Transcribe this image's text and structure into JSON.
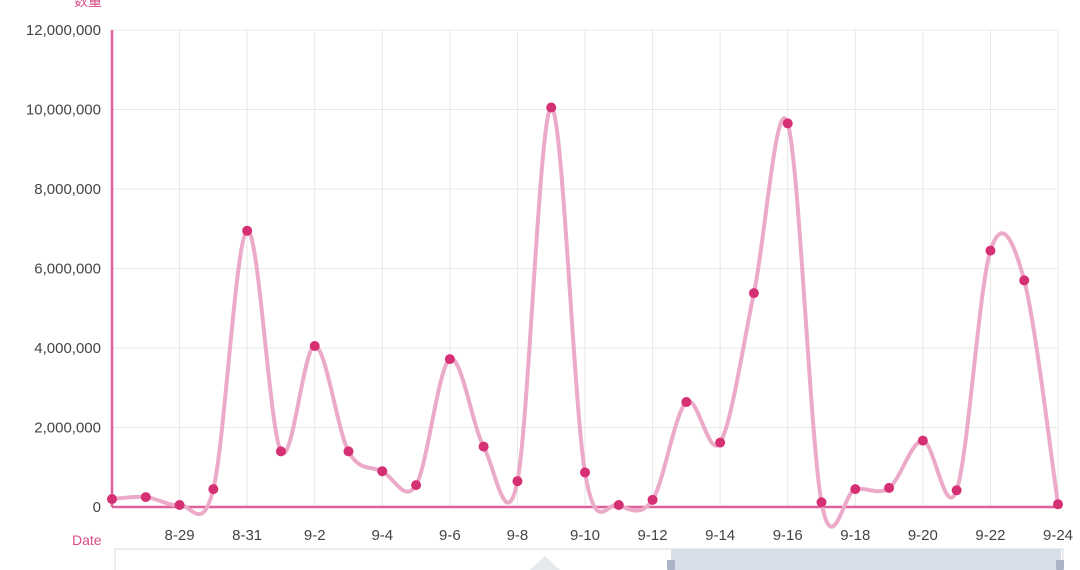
{
  "chart_data": {
    "type": "line",
    "ylabel": "数量",
    "xlabel": "Date",
    "ylim": [
      0,
      12000000
    ],
    "y_ticks": [
      0,
      2000000,
      4000000,
      6000000,
      8000000,
      10000000,
      12000000
    ],
    "y_tick_labels": [
      "0",
      "2,000,000",
      "4,000,000",
      "6,000,000",
      "8,000,000",
      "10,000,000",
      "12,000,000"
    ],
    "x_tick_labels": [
      "8-29",
      "8-31",
      "9-2",
      "9-4",
      "9-6",
      "9-8",
      "9-10",
      "9-12",
      "9-14",
      "9-16",
      "9-18",
      "9-20",
      "9-22",
      "9-24"
    ],
    "categories": [
      "8-27",
      "8-28",
      "8-29",
      "8-30",
      "8-31",
      "9-1",
      "9-2",
      "9-3",
      "9-4",
      "9-5",
      "9-6",
      "9-7",
      "9-8",
      "9-9",
      "9-10",
      "9-11",
      "9-12",
      "9-13",
      "9-14",
      "9-15",
      "9-16",
      "9-17",
      "9-18",
      "9-19",
      "9-20",
      "9-21",
      "9-22",
      "9-23",
      "9-24"
    ],
    "series": [
      {
        "values": [
          200000,
          250000,
          50000,
          450000,
          6950000,
          1400000,
          4050000,
          1400000,
          900000,
          550000,
          3720000,
          1520000,
          650000,
          10050000,
          870000,
          50000,
          180000,
          2640000,
          1620000,
          5380000,
          9650000,
          120000,
          450000,
          480000,
          1670000,
          420000,
          6450000,
          5700000,
          70000
        ]
      }
    ],
    "grid": true,
    "colors": {
      "line": "#ecaac9",
      "point": "#d63074",
      "axis": "#e0609b",
      "grid": "#e8e8e8"
    }
  }
}
